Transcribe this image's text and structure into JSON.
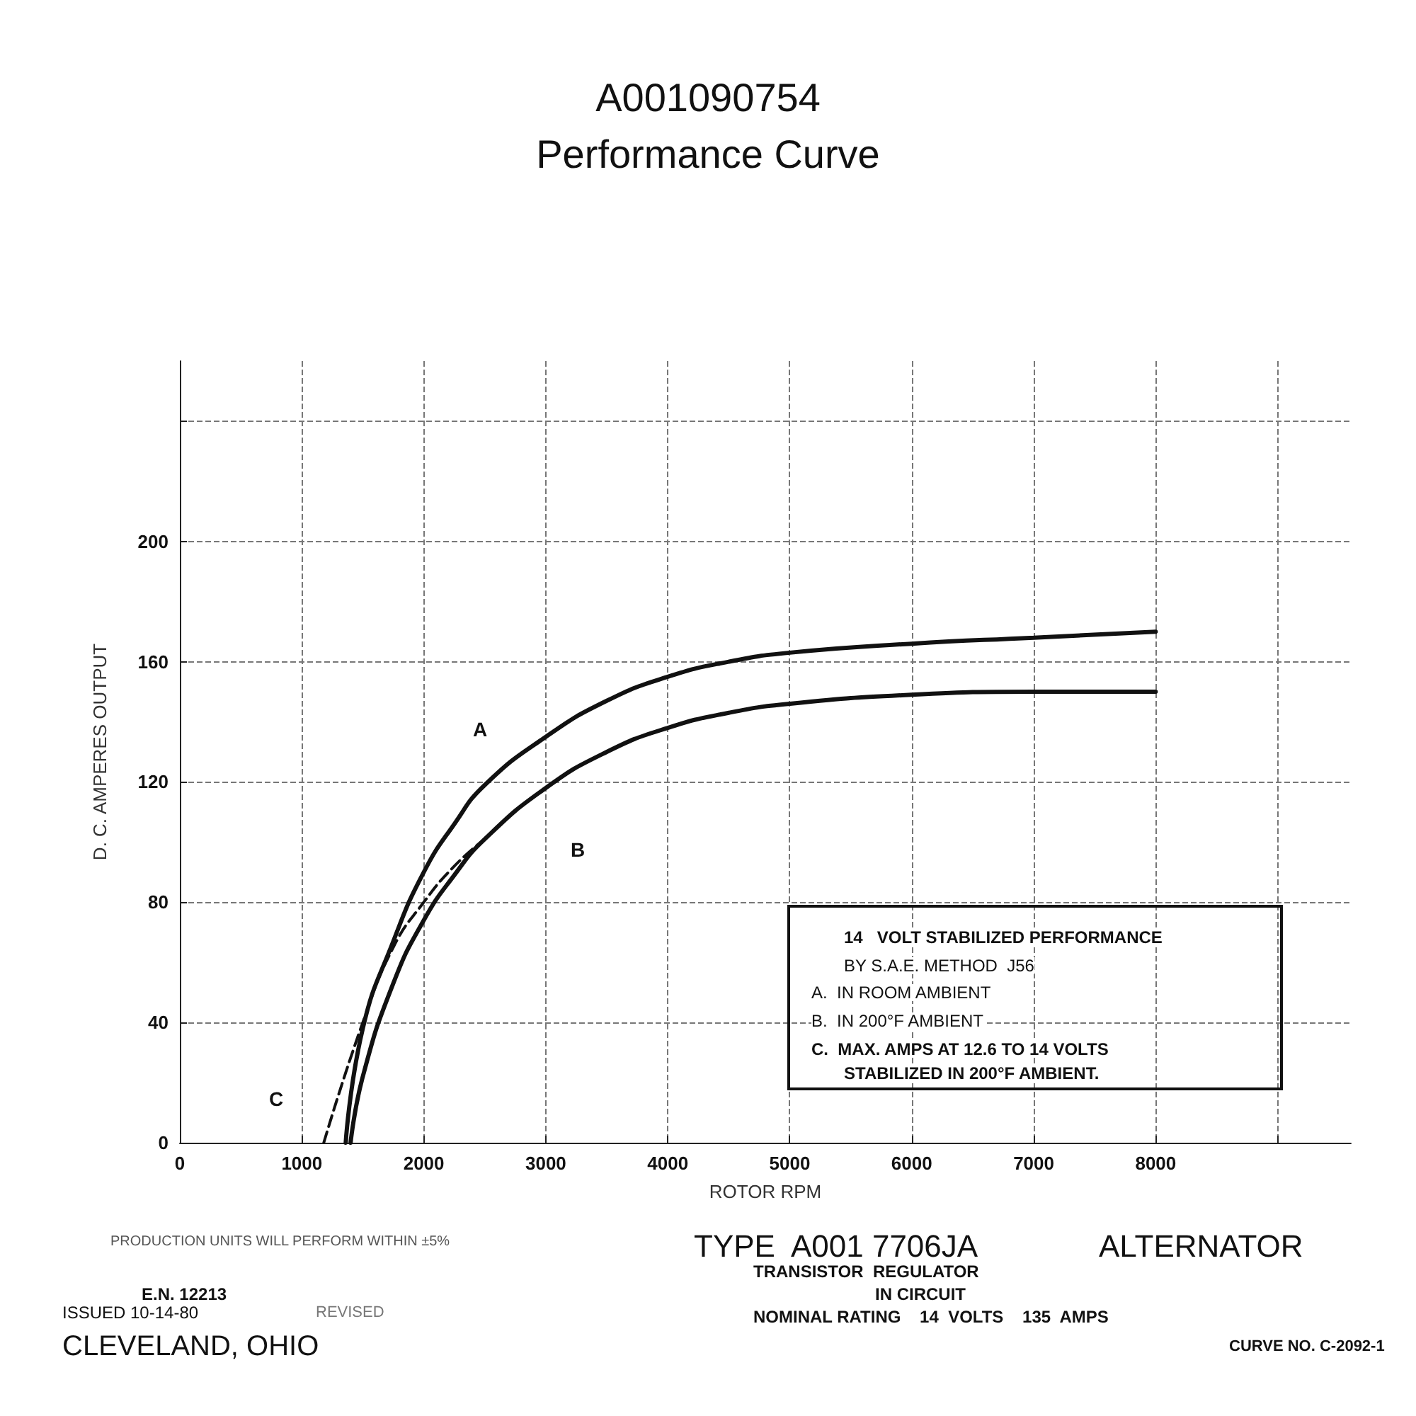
{
  "chart_data": {
    "type": "line",
    "title": "A001090754",
    "subtitle": "Performance Curve",
    "xlabel": "ROTOR RPM",
    "ylabel": "D. C. AMPERES OUTPUT",
    "xlim": [
      0,
      9600
    ],
    "ylim": [
      0,
      260
    ],
    "xticks": [
      0,
      1000,
      2000,
      3000,
      4000,
      5000,
      6000,
      7000,
      8000,
      {
        "value": 9000,
        "label": null
      }
    ],
    "yticks": [
      0,
      40,
      80,
      120,
      160,
      200,
      {
        "value": 240,
        "label": null
      }
    ],
    "grid": true,
    "marker": "none",
    "series": [
      {
        "color": "#111111",
        "line_style": "solid",
        "x": [
          1360,
          1500,
          1750,
          2000,
          2250,
          2500,
          3000,
          3500,
          4000,
          4500,
          5000,
          6000,
          7000,
          8000
        ],
        "values": [
          0,
          38,
          67,
          90,
          106,
          119,
          135,
          147,
          155,
          160,
          163,
          166,
          168,
          170
        ]
      },
      {
        "color": "#111111",
        "line_style": "solid",
        "x": [
          1400,
          1500,
          1750,
          2000,
          2250,
          2500,
          3000,
          3500,
          4000,
          4500,
          5000,
          6000,
          7000,
          8000
        ],
        "values": [
          0,
          22,
          53,
          74,
          89,
          101,
          118,
          130,
          138,
          143,
          146,
          149,
          150,
          150
        ]
      },
      {
        "color": "#111111",
        "line_style": "dashed",
        "x": [
          1180,
          1500,
          1750,
          2000,
          2250,
          2500
        ],
        "values": [
          0,
          40,
          65,
          80,
          92,
          101
        ]
      }
    ],
    "annotations": [
      "A",
      "B",
      "C",
      "14   VOLT STABILIZED PERFORMANCE",
      "BY S.A.E. METHOD  J56",
      "A.  IN ROOM AMBIENT",
      "B.  IN 200°F AMBIENT",
      "C.  MAX. AMPS AT 12.6 TO 14 VOLTS",
      "STABILIZED IN 200°F AMBIENT.",
      "PRODUCTION UNITS WILL PERFORM WITHIN ±5%",
      "TYPE  A001 7706JA",
      "ALTERNATOR",
      "TRANSISTOR  REGULATOR",
      "IN CIRCUIT",
      "NOMINAL RATING    14  VOLTS    135  AMPS",
      "E.N. 12213",
      "ISSUED 10-14-80",
      "REVISED",
      "CLEVELAND, OHIO",
      "CURVE NO. C-2092-1"
    ]
  }
}
